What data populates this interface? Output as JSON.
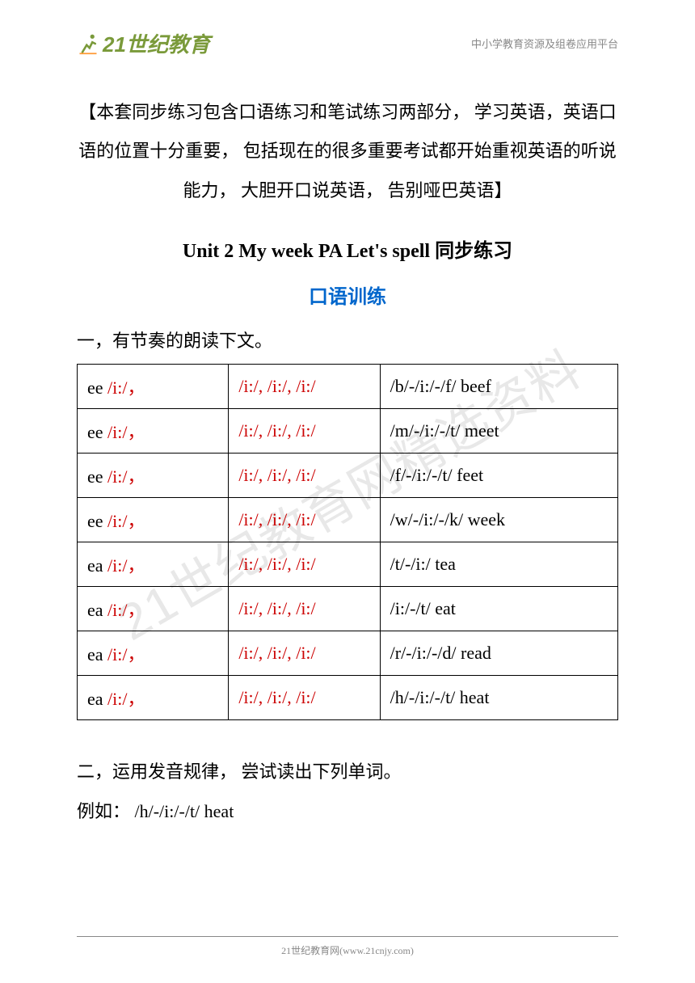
{
  "header": {
    "logo_text": "21世纪教育",
    "right_text": "中小学教育资源及组卷应用平台"
  },
  "watermark": "21世纪教育网精选资料",
  "intro": "【本套同步练习包含口语练习和笔试练习两部分， 学习英语，英语口语的位置十分重要， 包括现在的很多重要考试都开始重视英语的听说能力， 大胆开口说英语， 告别哑巴英语】",
  "title": "Unit 2 My week PA Let's spell 同步练习",
  "subtitle": "口语训练",
  "section1_label": "一，有节奏的朗读下文。",
  "table": {
    "rows": [
      {
        "c1_black": "ee   ",
        "c1_red": "/i:/，",
        "c2": "/i:/, /i:/, /i:/",
        "c3": "/b/-/i:/-/f/   beef"
      },
      {
        "c1_black": "ee   ",
        "c1_red": "/i:/，",
        "c2": "/i:/, /i:/, /i:/",
        "c3": "/m/-/i:/-/t/   meet"
      },
      {
        "c1_black": "ee   ",
        "c1_red": "/i:/，",
        "c2": "/i:/, /i:/, /i:/",
        "c3": "/f/-/i:/-/t/   feet"
      },
      {
        "c1_black": "ee   ",
        "c1_red": "/i:/，",
        "c2": "/i:/, /i:/, /i:/",
        "c3": "/w/-/i:/-/k/   week"
      },
      {
        "c1_black": "ea   ",
        "c1_red": "/i:/，",
        "c2": "/i:/, /i:/, /i:/",
        "c3": "/t/-/i:/   tea"
      },
      {
        "c1_black": "ea   ",
        "c1_red": "/i:/，",
        "c2": "/i:/, /i:/, /i:/",
        "c3": "/i:/-/t/   eat"
      },
      {
        "c1_black": "ea   ",
        "c1_red": "/i:/，",
        "c2": "/i:/, /i:/, /i:/",
        "c3": "/r/-/i:/-/d/   read"
      },
      {
        "c1_black": "ea   ",
        "c1_red": "/i:/，",
        "c2": "/i:/, /i:/, /i:/",
        "c3": "/h/-/i:/-/t/   heat"
      }
    ]
  },
  "section2_label": "二，运用发音规律， 尝试读出下列单词。",
  "example": "例如： /h/-/i:/-/t/   heat",
  "footer": "21世纪教育网(www.21cnjy.com)",
  "colors": {
    "red": "#cc0000",
    "blue": "#0066cc",
    "logo_green": "#7a9a3a",
    "gray": "#888888",
    "watermark": "#e8e8e8"
  }
}
